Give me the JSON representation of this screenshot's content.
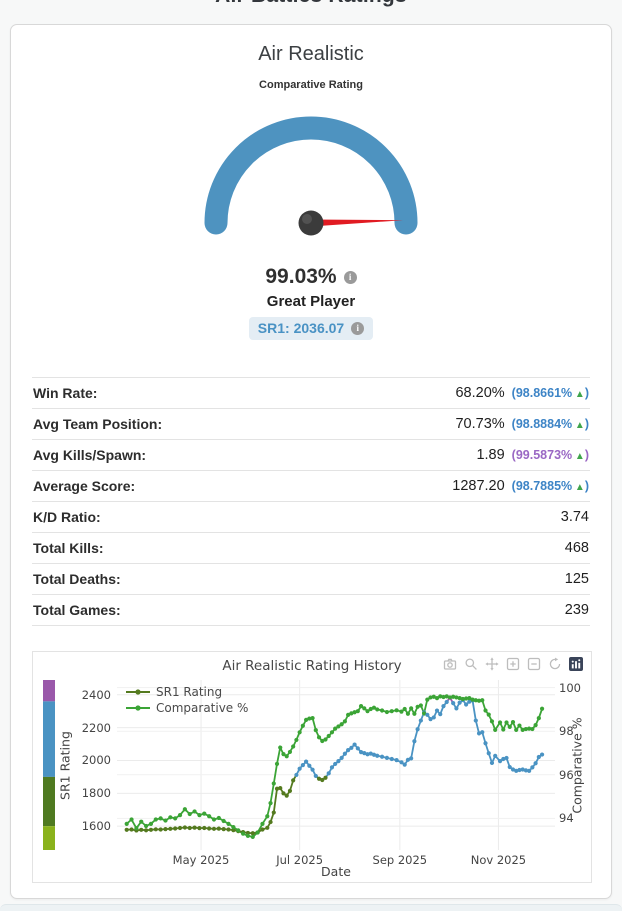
{
  "page": {
    "title": "Air Battles Ratings"
  },
  "card": {
    "title": "Air Realistic",
    "subtitle": "Comparative Rating",
    "gauge": {
      "value_pct": 99.03,
      "value_label": "99.03%",
      "tier_label": "Great Player",
      "badge": "SR1: 2036.07",
      "min": 0,
      "max": 100
    },
    "stats": {
      "rows": [
        {
          "label": "Win Rate:",
          "value": "68.20%",
          "pct": "(98.8661%",
          "arrow": "▲",
          "close": ")",
          "pct_color": "#3d84c6"
        },
        {
          "label": "Avg Team Position:",
          "value": "70.73%",
          "pct": "(98.8884%",
          "arrow": "▲",
          "close": ")",
          "pct_color": "#3d84c6"
        },
        {
          "label": "Avg Kills/Spawn:",
          "value": "1.89",
          "pct": "(99.5873%",
          "arrow": "▲",
          "close": ")",
          "pct_color": "#9a68c4"
        },
        {
          "label": "Average Score:",
          "value": "1287.20",
          "pct": "(98.7885%",
          "arrow": "▲",
          "close": ")",
          "pct_color": "#3d84c6"
        },
        {
          "label": "K/D Ratio:",
          "value": "3.74"
        },
        {
          "label": "Total Kills:",
          "value": "468"
        },
        {
          "label": "Total Deaths:",
          "value": "125"
        },
        {
          "label": "Total Games:",
          "value": "239"
        }
      ]
    }
  },
  "chart": {
    "title": "Air Realistic Rating History",
    "x_title": "Date",
    "y_left_title": "SR1 Rating",
    "y_right_title": "Comparative %",
    "modebar_icons": [
      "snapshot",
      "zoom",
      "pan",
      "zoom-in",
      "zoom-out",
      "reset-axes",
      "plotly-logo"
    ]
  },
  "chart_data": {
    "type": "line",
    "title": "Air Realistic Rating History",
    "xlabel": "Date",
    "ylabel_left": "SR1 Rating",
    "ylabel_right": "Comparative %",
    "legend_position": "top-left-inside",
    "grid": true,
    "x_range": [
      "2025-03-10",
      "2025-12-06"
    ],
    "left_range": [
      1455,
      2490
    ],
    "right_range": [
      92.55,
      100.35
    ],
    "left_ticks": [
      1600,
      1800,
      2000,
      2200,
      2400
    ],
    "right_ticks": [
      94,
      96,
      98,
      100
    ],
    "x_ticks": [
      {
        "date": "2025-05-01",
        "label": "May 2025"
      },
      {
        "date": "2025-07-01",
        "label": "Jul 2025"
      },
      {
        "date": "2025-09-01",
        "label": "Sep 2025"
      },
      {
        "date": "2025-11-01",
        "label": "Nov 2025"
      }
    ],
    "x": [
      "2025-03-16",
      "2025-03-19",
      "2025-03-22",
      "2025-03-25",
      "2025-03-28",
      "2025-03-31",
      "2025-04-03",
      "2025-04-06",
      "2025-04-09",
      "2025-04-12",
      "2025-04-15",
      "2025-04-18",
      "2025-04-21",
      "2025-04-24",
      "2025-04-27",
      "2025-04-30",
      "2025-05-03",
      "2025-05-06",
      "2025-05-09",
      "2025-05-12",
      "2025-05-15",
      "2025-05-18",
      "2025-05-21",
      "2025-05-24",
      "2025-05-27",
      "2025-05-30",
      "2025-06-02",
      "2025-06-05",
      "2025-06-08",
      "2025-06-11",
      "2025-06-13",
      "2025-06-15",
      "2025-06-17",
      "2025-06-19",
      "2025-06-21",
      "2025-06-23",
      "2025-06-25",
      "2025-06-27",
      "2025-06-29",
      "2025-07-01",
      "2025-07-03",
      "2025-07-05",
      "2025-07-07",
      "2025-07-09",
      "2025-07-11",
      "2025-07-13",
      "2025-07-15",
      "2025-07-17",
      "2025-07-19",
      "2025-07-21",
      "2025-07-23",
      "2025-07-25",
      "2025-07-27",
      "2025-07-29",
      "2025-07-31",
      "2025-08-02",
      "2025-08-04",
      "2025-08-06",
      "2025-08-08",
      "2025-08-10",
      "2025-08-12",
      "2025-08-14",
      "2025-08-16",
      "2025-08-18",
      "2025-08-21",
      "2025-08-24",
      "2025-08-27",
      "2025-08-30",
      "2025-09-02",
      "2025-09-04",
      "2025-09-06",
      "2025-09-08",
      "2025-09-10",
      "2025-09-12",
      "2025-09-14",
      "2025-09-16",
      "2025-09-18",
      "2025-09-20",
      "2025-09-22",
      "2025-09-24",
      "2025-09-26",
      "2025-09-28",
      "2025-09-30",
      "2025-10-02",
      "2025-10-04",
      "2025-10-06",
      "2025-10-08",
      "2025-10-10",
      "2025-10-12",
      "2025-10-14",
      "2025-10-16",
      "2025-10-18",
      "2025-10-20",
      "2025-10-22",
      "2025-10-24",
      "2025-10-26",
      "2025-10-28",
      "2025-10-30",
      "2025-11-02",
      "2025-11-04",
      "2025-11-06",
      "2025-11-08",
      "2025-11-10",
      "2025-11-12",
      "2025-11-14",
      "2025-11-16",
      "2025-11-18",
      "2025-11-20",
      "2025-11-22",
      "2025-11-24",
      "2025-11-26",
      "2025-11-28"
    ],
    "series": [
      {
        "name": "SR1 Rating",
        "axis": "left",
        "tiered": true,
        "values": [
          1578,
          1580,
          1574,
          1578,
          1575,
          1578,
          1581,
          1580,
          1582,
          1584,
          1586,
          1589,
          1592,
          1589,
          1591,
          1588,
          1589,
          1586,
          1584,
          1585,
          1582,
          1580,
          1576,
          1570,
          1564,
          1559,
          1557,
          1562,
          1580,
          1590,
          1625,
          1683,
          1828,
          1832,
          1800,
          1786,
          1815,
          1879,
          1912,
          1950,
          1972,
          1993,
          1968,
          1944,
          1906,
          1889,
          1881,
          1895,
          1922,
          1958,
          1979,
          1996,
          2016,
          2041,
          2063,
          2077,
          2097,
          2074,
          2051,
          2045,
          2038,
          2042,
          2035,
          2029,
          2023,
          2016,
          2009,
          2002,
          1989,
          1975,
          2004,
          2013,
          2117,
          2190,
          2243,
          2293,
          2278,
          2252,
          2262,
          2304,
          2282,
          2331,
          2356,
          2383,
          2349,
          2317,
          2352,
          2368,
          2341,
          2358,
          2365,
          2243,
          2165,
          2172,
          2105,
          2044,
          1985,
          2028,
          1996,
          2009,
          2015,
          1960,
          1945,
          1937,
          1942,
          1945,
          1940,
          1937,
          1958,
          1983,
          2021,
          2036
        ]
      },
      {
        "name": "Comparative %",
        "axis": "right",
        "color": "#3ba436",
        "values": [
          93.75,
          93.95,
          93.55,
          93.85,
          93.65,
          93.75,
          93.95,
          94.0,
          93.9,
          94.05,
          94.0,
          94.15,
          94.42,
          94.2,
          94.32,
          94.15,
          94.22,
          94.1,
          93.95,
          94.02,
          93.88,
          93.75,
          93.6,
          93.45,
          93.3,
          93.2,
          93.15,
          93.35,
          93.75,
          94.1,
          94.7,
          95.6,
          96.5,
          97.25,
          96.95,
          96.85,
          97.05,
          97.3,
          97.6,
          97.95,
          98.25,
          98.52,
          98.58,
          98.6,
          98.05,
          97.72,
          97.55,
          97.62,
          97.78,
          97.95,
          98.12,
          98.22,
          98.32,
          98.45,
          98.75,
          98.82,
          98.87,
          98.92,
          99.15,
          99.05,
          98.92,
          99.02,
          99.08,
          99.0,
          98.95,
          98.88,
          98.92,
          98.96,
          98.9,
          99.02,
          98.8,
          99.05,
          98.8,
          99.12,
          99.18,
          98.82,
          99.45,
          99.55,
          99.58,
          99.52,
          99.6,
          99.57,
          99.6,
          99.55,
          99.58,
          99.55,
          99.52,
          99.48,
          99.5,
          99.52,
          99.45,
          99.42,
          99.4,
          99.42,
          98.95,
          98.76,
          98.45,
          98.06,
          98.4,
          98.08,
          98.4,
          98.2,
          98.42,
          98.06,
          98.26,
          98.06,
          98.1,
          98.12,
          98.1,
          98.28,
          98.6,
          99.03
        ]
      }
    ],
    "tier_thresholds": [
      1550,
      1900,
      2375
    ],
    "tier_colors": [
      "#8ab21c",
      "#547a1f",
      "#4a93c3",
      "#9a58aa"
    ],
    "band": [
      {
        "min": 2360,
        "max": 2490,
        "color": "#9a58aa"
      },
      {
        "min": 1900,
        "max": 2360,
        "color": "#4a93c3"
      },
      {
        "min": 1600,
        "max": 1900,
        "color": "#4f7a21"
      },
      {
        "min": 1455,
        "max": 1600,
        "color": "#8ab21c"
      }
    ]
  },
  "colors": {
    "gauge_arc": "#4e93c0",
    "needle": "#e11b22",
    "hub": "#3b3b3b",
    "badge_bg": "#e4edf4",
    "badge_text": "#4992c4",
    "arrow_green": "#3fa54b",
    "pct_blue": "#3d84c6",
    "pct_purple": "#9a68c4"
  }
}
